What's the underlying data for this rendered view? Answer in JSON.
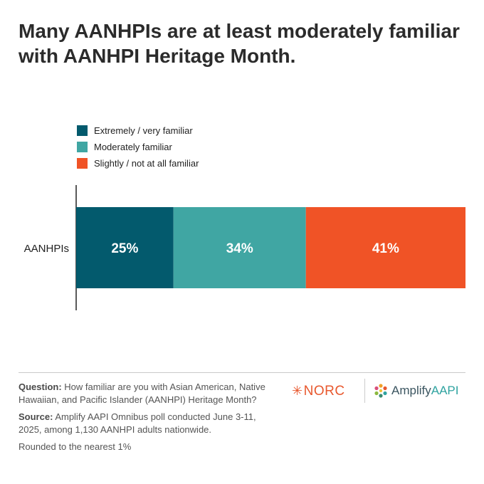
{
  "title": "Many AANHPIs are at least moderately familiar with AANHPI Heritage Month.",
  "colors": {
    "extremely": "#035a6d",
    "moderately": "#40a6a3",
    "slightly": "#f05326"
  },
  "chart_data": {
    "type": "bar",
    "orientation": "horizontal",
    "stacked": true,
    "categories": [
      "AANHPIs"
    ],
    "series": [
      {
        "name": "Extremely / very familiar",
        "values": [
          25
        ],
        "label": "25%"
      },
      {
        "name": "Moderately familiar",
        "values": [
          34
        ],
        "label": "34%"
      },
      {
        "name": "Slightly / not at all familiar",
        "values": [
          41
        ],
        "label": "41%"
      }
    ],
    "xlim": [
      0,
      100
    ],
    "legend": "top-left"
  },
  "notes": {
    "question_label": "Question:",
    "question_text": "How familiar are you with Asian American, Native Hawaiian, and Pacific Islander (AANHPI) Heritage Month?",
    "source_label": "Source:",
    "source_text": "Amplify AAPI Omnibus poll conducted June 3-11, 2025, among 1,130 AANHPI adults nationwide.",
    "rounding": "Rounded to the nearest 1%"
  },
  "logos": {
    "norc": "NORC",
    "amplify_main": "Amplify",
    "amplify_accent": "AAPI",
    "norc_icon": "asterisk-spark-icon",
    "amplify_icon": "flower-dots-icon"
  }
}
